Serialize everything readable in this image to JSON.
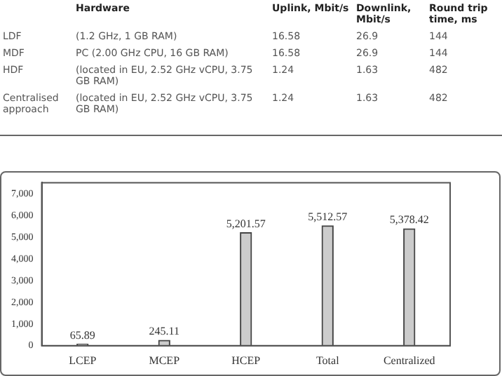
{
  "chart_data": {
    "type": "bar",
    "categories": [
      "LCEP",
      "MCEP",
      "HCEP",
      "Total",
      "Centralized"
    ],
    "values": [
      65.89,
      245.11,
      5201.57,
      5512.57,
      5378.42
    ],
    "color": "#cccccc",
    "value_labels": [
      "65.89",
      "245.11",
      "5,201.57",
      "5,512.57",
      "5,378.42"
    ],
    "ylim": [
      0,
      7500
    ],
    "yticks": [
      0,
      {
        "value": 1000,
        "label": "1,000"
      },
      {
        "value": 2000,
        "label": "2,000"
      },
      {
        "value": 3000,
        "label": "3,000"
      },
      {
        "value": 4000,
        "label": "4,000"
      },
      {
        "value": 5000,
        "label": "5,000"
      },
      {
        "value": 6000,
        "label": "6,000"
      },
      {
        "value": 7000,
        "label": "7,000"
      }
    ],
    "grid": false,
    "legend": false,
    "annotations": [
      "Hardware",
      "Uplink, Mbit/s",
      "Downlink, Mbit/s",
      "Round trip time, ms",
      "LDF",
      "(1.2 GHz, 1 GB RAM)",
      "16.58",
      "26.9",
      "144",
      "MDF",
      "PC (2.00 GHz CPU, 16 GB RAM)",
      "16.58",
      "26.9",
      "144",
      "HDF",
      "(located in EU, 2.52 GHz vCPU, 3.75 GB RAM)",
      "1.24",
      "1.63",
      "482",
      "Centralised approach",
      "(located in EU, 2.52 GHz vCPU, 3.75 GB RAM)",
      "1.24",
      "1.63",
      "482"
    ]
  }
}
